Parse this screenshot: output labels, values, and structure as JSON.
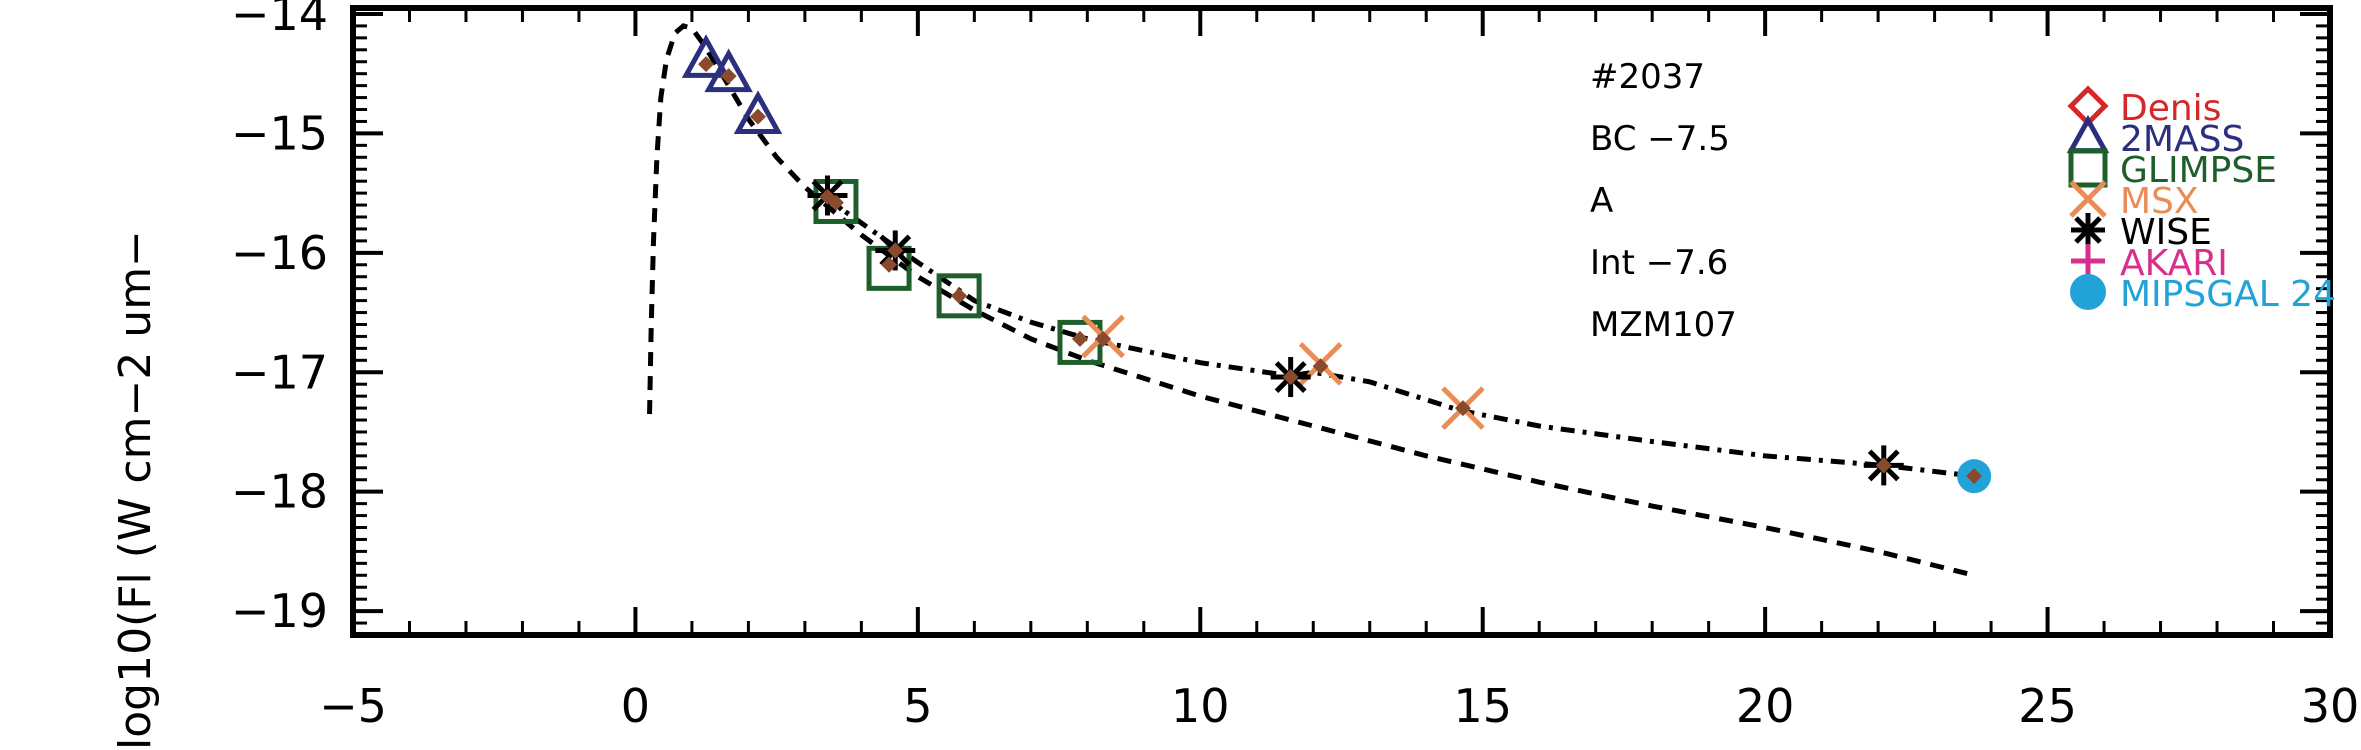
{
  "chart_data": {
    "type": "scatter",
    "title": "",
    "xlabel": "",
    "ylabel": "log10(Fl (W cm−2 um−",
    "xlim": [
      -5,
      30
    ],
    "ylim": [
      -19.2,
      -13.95
    ],
    "x_ticks": [
      -5,
      0,
      5,
      10,
      15,
      20,
      25,
      30
    ],
    "x_tick_labels": [
      "−5",
      "0",
      "5",
      "10",
      "15",
      "20",
      "25",
      "30"
    ],
    "y_ticks": [
      -19,
      -18,
      -17,
      -16,
      -15,
      -14
    ],
    "y_tick_labels": [
      "−19",
      "−18",
      "−17",
      "−16",
      "−15",
      "−14"
    ],
    "annotations": [
      "#2037",
      "BC −7.5",
      "A",
      "Int −7.6",
      "MZM107"
    ],
    "legend_position": "right",
    "model_curves": [
      {
        "style": "dashed",
        "x": [
          0.25,
          0.28,
          0.32,
          0.38,
          0.45,
          0.55,
          0.7,
          0.85,
          1.0,
          1.2,
          1.5,
          2.0,
          2.5,
          3.0,
          3.5,
          4.0,
          5.0,
          6.0,
          7.0,
          8.0,
          9.0,
          10.0,
          12.0,
          14.0,
          16.0,
          18.0,
          20.0,
          22.0,
          23.7
        ],
        "y": [
          -17.35,
          -16.6,
          -15.9,
          -15.2,
          -14.7,
          -14.38,
          -14.16,
          -14.1,
          -14.12,
          -14.25,
          -14.48,
          -14.88,
          -15.2,
          -15.45,
          -15.65,
          -15.85,
          -16.2,
          -16.48,
          -16.72,
          -16.9,
          -17.05,
          -17.2,
          -17.45,
          -17.7,
          -17.92,
          -18.12,
          -18.3,
          -18.5,
          -18.7
        ]
      },
      {
        "style": "dashdot",
        "x": [
          3.4,
          4.0,
          4.6,
          5.0,
          6.0,
          7.0,
          8.0,
          9.0,
          10.0,
          11.6,
          12.0,
          13.0,
          14.6,
          16.0,
          18.0,
          20.0,
          22.1,
          23.7
        ],
        "y": [
          -15.55,
          -15.75,
          -15.95,
          -16.08,
          -16.4,
          -16.58,
          -16.72,
          -16.82,
          -16.92,
          -17.03,
          -17.0,
          -17.08,
          -17.32,
          -17.45,
          -17.58,
          -17.7,
          -17.78,
          -17.87
        ]
      }
    ],
    "series": [
      {
        "name": "Denis",
        "marker": "diamond",
        "color": "#d62728",
        "x": [],
        "y": []
      },
      {
        "name": "2MASS",
        "marker": "triangle",
        "color": "#2b2f7e",
        "x": [
          1.25,
          1.65,
          2.17
        ],
        "y": [
          -14.38,
          -14.5,
          -14.85
        ]
      },
      {
        "name": "GLIMPSE",
        "marker": "square",
        "color": "#1d5e2b",
        "x": [
          3.55,
          4.49,
          5.73,
          7.87
        ],
        "y": [
          -15.57,
          -16.13,
          -16.36,
          -16.75
        ]
      },
      {
        "name": "MSX",
        "marker": "x",
        "color": "#ea8c55",
        "x": [
          8.28,
          12.13,
          14.65
        ],
        "y": [
          -16.7,
          -16.93,
          -17.3
        ]
      },
      {
        "name": "WISE",
        "marker": "asterisk",
        "color": "#000000",
        "x": [
          3.4,
          4.6,
          11.6,
          22.1
        ],
        "y": [
          -15.52,
          -15.98,
          -17.04,
          -17.78
        ]
      },
      {
        "name": "AKARI",
        "marker": "plus",
        "color": "#d62f8c",
        "x": [],
        "y": []
      },
      {
        "name": "MIPSGAL 24",
        "marker": "circle",
        "color": "#22a3d8",
        "x": [
          23.7
        ],
        "y": [
          -17.87
        ]
      }
    ],
    "model_points": {
      "color": "#8a4a2e",
      "x": [
        1.25,
        1.65,
        2.17,
        3.4,
        3.55,
        4.49,
        4.6,
        5.73,
        7.87,
        8.28,
        11.6,
        12.13,
        14.65,
        22.1,
        23.7
      ],
      "y": [
        -14.42,
        -14.52,
        -14.86,
        -15.53,
        -15.58,
        -16.1,
        -15.98,
        -16.36,
        -16.72,
        -16.72,
        -17.04,
        -16.95,
        -17.3,
        -17.78,
        -17.87
      ]
    }
  }
}
